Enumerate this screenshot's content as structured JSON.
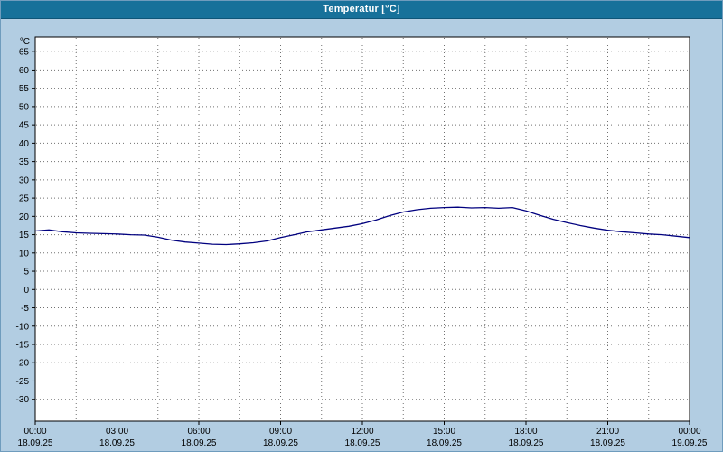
{
  "header": {
    "title": "Temperatur [°C]"
  },
  "colors": {
    "header_bg": "#17719a",
    "page_bg": "#b2cde2",
    "plot_bg": "#ffffff",
    "plot_border": "#000000",
    "grid": "#707070",
    "line": "#00007f",
    "tick_text": "#000000"
  },
  "chart_data": {
    "type": "line",
    "title": "Temperatur [°C]",
    "ylabel": "°C",
    "ylim": [
      -30,
      65
    ],
    "ytick_step": 5,
    "xlim_hours": [
      0,
      24
    ],
    "x_gridline_step_hours": 1.5,
    "x_tick_step_hours": 3,
    "grid": "dotted",
    "legend_position": "none",
    "xticks": [
      {
        "time": "00:00",
        "date": "18.09.25"
      },
      {
        "time": "03:00",
        "date": "18.09.25"
      },
      {
        "time": "06:00",
        "date": "18.09.25"
      },
      {
        "time": "09:00",
        "date": "18.09.25"
      },
      {
        "time": "12:00",
        "date": "18.09.25"
      },
      {
        "time": "15:00",
        "date": "18.09.25"
      },
      {
        "time": "18:00",
        "date": "18.09.25"
      },
      {
        "time": "21:00",
        "date": "18.09.25"
      },
      {
        "time": "00:00",
        "date": "19.09.25"
      }
    ],
    "series": [
      {
        "name": "Temperatur",
        "x_hours": [
          0,
          0.5,
          1,
          1.5,
          2,
          2.5,
          3,
          3.5,
          4,
          4.5,
          5,
          5.5,
          6,
          6.5,
          7,
          7.5,
          8,
          8.5,
          9,
          9.5,
          10,
          10.5,
          11,
          11.5,
          12,
          12.5,
          13,
          13.5,
          14,
          14.5,
          15,
          15.5,
          16,
          16.5,
          17,
          17.5,
          18,
          18.5,
          19,
          19.5,
          20,
          20.5,
          21,
          21.5,
          22,
          22.5,
          23,
          23.5,
          24
        ],
        "values": [
          16.0,
          16.3,
          15.8,
          15.5,
          15.4,
          15.3,
          15.2,
          15.0,
          14.9,
          14.3,
          13.5,
          13.0,
          12.7,
          12.4,
          12.3,
          12.5,
          12.8,
          13.3,
          14.2,
          15.0,
          15.8,
          16.3,
          16.8,
          17.3,
          18.0,
          19.0,
          20.2,
          21.2,
          21.8,
          22.2,
          22.4,
          22.5,
          22.3,
          22.4,
          22.2,
          22.4,
          21.5,
          20.3,
          19.2,
          18.3,
          17.5,
          16.8,
          16.2,
          15.8,
          15.5,
          15.2,
          15.0,
          14.6,
          14.2
        ]
      }
    ]
  }
}
